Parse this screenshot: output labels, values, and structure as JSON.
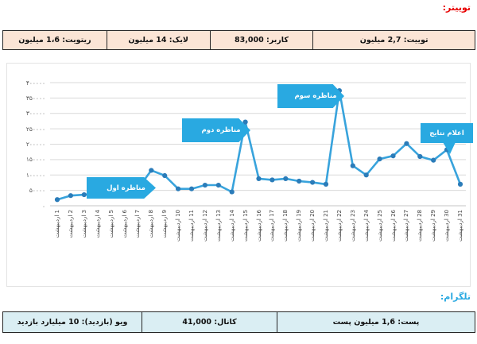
{
  "twitter": {
    "title": "توییتر:",
    "title_color": "#e80000",
    "table_bg": "#fbe5d6",
    "cells": [
      {
        "label": "توییت: 2,7 میلیون"
      },
      {
        "label": "کاربر: 83,000"
      },
      {
        "label": "لایک: 14 میلیون"
      },
      {
        "label": "ریتویت: 1،6 میلیون"
      }
    ]
  },
  "telegram": {
    "title": "تلگرام:",
    "title_color": "#29a9e1",
    "table_bg": "#daeef3",
    "cells": [
      {
        "label": "پست: 1,6 میلیون پست"
      },
      {
        "label": "کانال: 41,000"
      },
      {
        "label": "ویو (بازدید): 10 میلیارد بازدید"
      }
    ]
  },
  "chart_data": {
    "type": "line",
    "title": "",
    "xlabel": "",
    "ylabel": "",
    "ylim": [
      0,
      400000
    ],
    "y_tick_step": 50000,
    "y_tick_labels_top_to_bottom": [
      "۴۰۰۰۰۰",
      "۳۵۰۰۰۰",
      "۳۰۰۰۰۰",
      "۲۵۰۰۰۰",
      "۲۰۰۰۰۰",
      "۱۵۰۰۰۰",
      "۱۰۰۰۰۰",
      "۵۰۰۰۰",
      "۰"
    ],
    "grid": true,
    "legend": "none",
    "line_color": "#38a3dc",
    "marker_color": "#2b7cb9",
    "grid_color": "#d9d9d9",
    "categories": [
      "1 اردیبهشت",
      "2 اردیبهشت",
      "3 اردیبهشت",
      "4 اردیبهشت",
      "5 اردیبهشت",
      "6 اردیبهشت",
      "7 اردیبهشت",
      "8 اردیبهشت",
      "9 اردیبهشت",
      "10 اردیبهشت",
      "11 اردیبهشت",
      "12 اردیبهشت",
      "13 اردیبهشت",
      "14 اردیبهشت",
      "15 اردیبهشت",
      "16 اردیبهشت",
      "17 اردیبهشت",
      "18 اردیبهشت",
      "19 اردیبهشت",
      "20 اردیبهشت",
      "21 اردیبهشت",
      "22 اردیبهشت",
      "23 اردیبهشت",
      "24 اردیبهشت",
      "25 اردیبهشت",
      "26 اردیبهشت",
      "27 اردیبهشت",
      "28 اردیبهشت",
      "29 اردیبهشت",
      "30 اردیبهشت",
      "31 اردیبهشت"
    ],
    "values": [
      20000,
      33000,
      36000,
      40000,
      44000,
      48000,
      55000,
      115000,
      98000,
      55000,
      55000,
      67000,
      67000,
      45000,
      272000,
      88000,
      84000,
      88000,
      80000,
      76000,
      70000,
      374000,
      130000,
      100000,
      152000,
      162000,
      202000,
      160000,
      148000,
      182000,
      70000
    ],
    "annotations": [
      {
        "text": "مناظره اول",
        "target_day": 8,
        "shape": "arrow-right"
      },
      {
        "text": "مناظره دوم",
        "target_day": 15,
        "shape": "arrow-right"
      },
      {
        "text": "مناظره سوم",
        "target_day": 22,
        "shape": "arrow-right"
      },
      {
        "text": "اعلام نتایج",
        "target_day": 30,
        "shape": "callout-down"
      }
    ]
  }
}
